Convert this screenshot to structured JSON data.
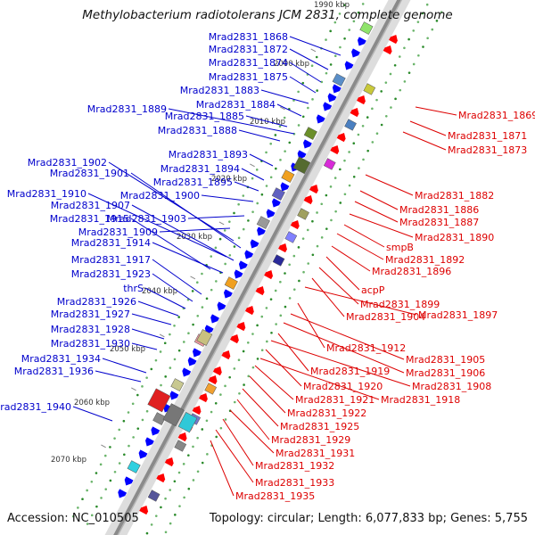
{
  "title": "Methylobacterium radiotolerans JCM 2831, complete genome",
  "accession": "Accession: NC_010505",
  "topology": "Topology: circular; Length: 6,077,833 bp; Genes: 5,755",
  "colors": {
    "forward_label": "#0000cc",
    "reverse_label": "#dd0000",
    "forward_arrow": "#0000ff",
    "reverse_arrow": "#ff0000"
  },
  "scale_ticks": [
    "1990 kbp",
    "2000 kbp",
    "2010 kbp",
    "2020 kbp",
    "2030 kbp",
    "2040 kbp",
    "2050 kbp",
    "2060 kbp",
    "2070 kbp"
  ],
  "forward_genes": [
    "Mrad2831_1868",
    "Mrad2831_1872",
    "Mrad2831_1874",
    "Mrad2831_1875",
    "Mrad2831_1883",
    "Mrad2831_1884",
    "Mrad2831_1889",
    "Mrad2831_1885",
    "Mrad2831_1888",
    "Mrad2831_1893",
    "Mrad2831_1902",
    "Mrad2831_1894",
    "Mrad2831_1901",
    "Mrad2831_1895",
    "Mrad2831_1910",
    "Mrad2831_1900",
    "Mrad2831_1907",
    "Mrad2831_1915",
    "Mrad2831_1903",
    "Mrad2831_1909",
    "Mrad2831_1914",
    "Mrad2831_1917",
    "Mrad2831_1923",
    "thrS",
    "Mrad2831_1926",
    "Mrad2831_1927",
    "Mrad2831_1928",
    "Mrad2831_1930",
    "Mrad2831_1934",
    "Mrad2831_1936",
    "Mrad2831_1940"
  ],
  "reverse_genes": [
    "Mrad2831_1869",
    "Mrad2831_1871",
    "Mrad2831_1873",
    "Mrad2831_1882",
    "Mrad2831_1886",
    "Mrad2831_1887",
    "Mrad2831_1890",
    "smpB",
    "Mrad2831_1892",
    "Mrad2831_1896",
    "acpP",
    "Mrad2831_1899",
    "Mrad2831_1904",
    "Mrad2831_1897",
    "Mrad2831_1912",
    "Mrad2831_1905",
    "Mrad2831_1906",
    "Mrad2831_1919",
    "Mrad2831_1908",
    "Mrad2831_1920",
    "Mrad2831_1918",
    "Mrad2831_1921",
    "Mrad2831_1922",
    "Mrad2831_1925",
    "Mrad2831_1929",
    "Mrad2831_1931",
    "Mrad2831_1932",
    "Mrad2831_1933",
    "Mrad2831_1935"
  ]
}
